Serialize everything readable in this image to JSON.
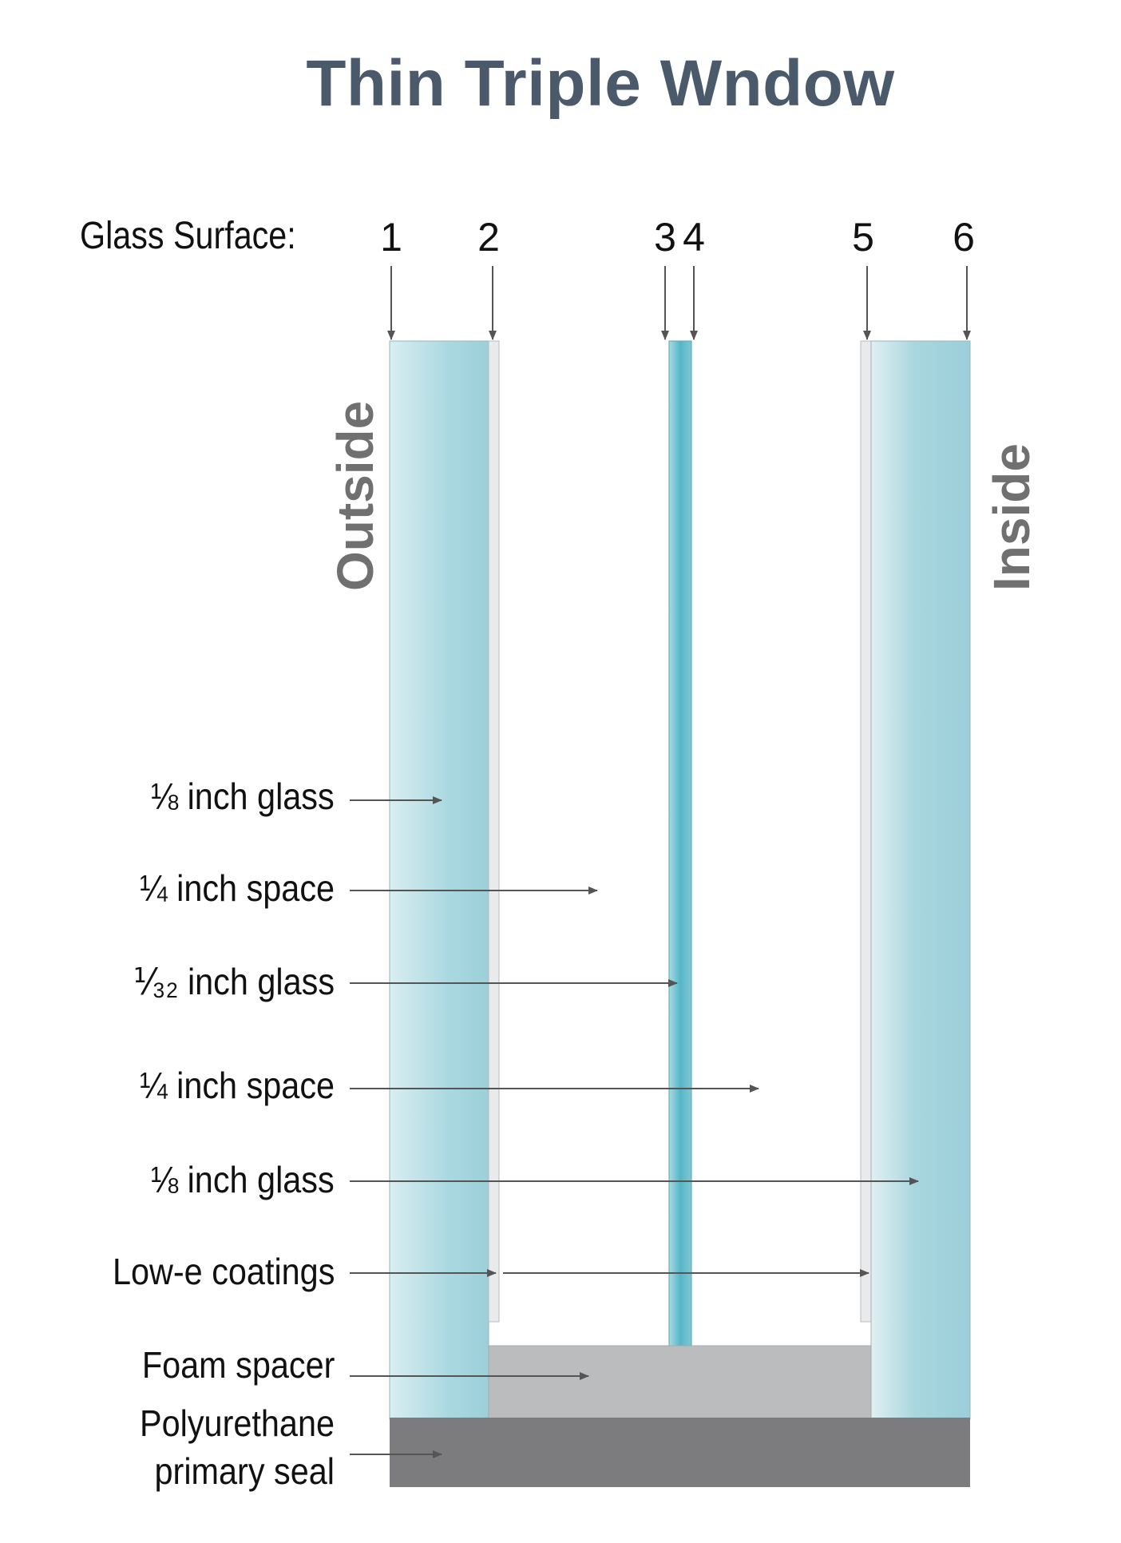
{
  "title": "Thin Triple Wndow",
  "glass_surface_label": "Glass Surface:",
  "surface_numbers": [
    "1",
    "2",
    "3",
    "4",
    "5",
    "6"
  ],
  "outside_label": "Outside",
  "inside_label": "Inside",
  "layer_labels": [
    {
      "text": "⅛ inch glass"
    },
    {
      "text": "¼ inch space"
    },
    {
      "text": "⅟₃₂ inch glass"
    },
    {
      "text": "¼ inch space"
    },
    {
      "text": "⅛ inch glass"
    },
    {
      "text": "Low-e coatings"
    },
    {
      "text": "Foam spacer"
    },
    {
      "text": "Polyurethane primary seal"
    }
  ],
  "colors": {
    "title": "#4a5a6a",
    "glass_light": "#d6ecf0",
    "glass_dark": "#9ed2dc",
    "center_glass": "#5ab8c8",
    "coating": "#e6e8ea",
    "foam_spacer": "#bbbcbe",
    "primary_seal": "#7c7c7e",
    "arrow": "#555555",
    "side_labels": "#707070"
  }
}
